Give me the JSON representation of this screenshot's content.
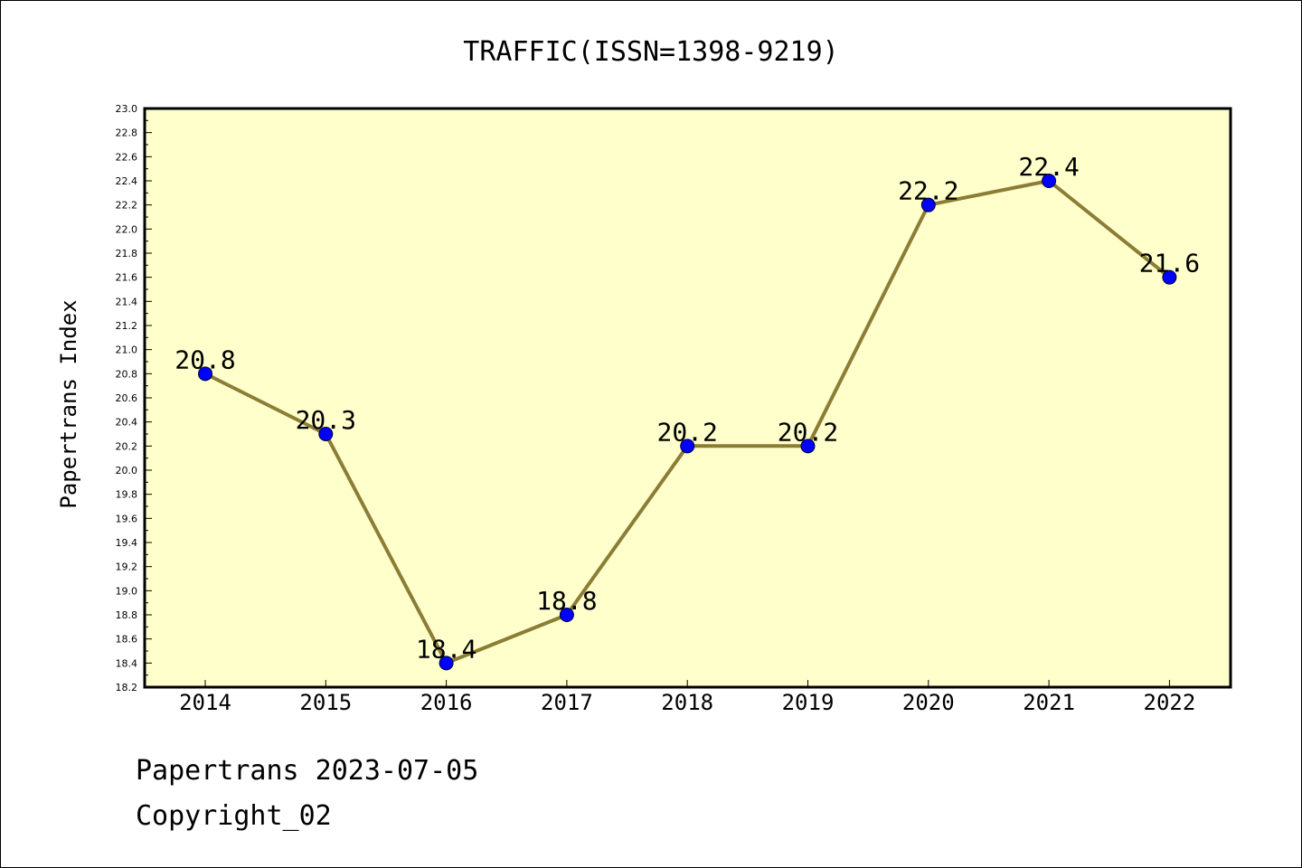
{
  "chart_data": {
    "type": "line",
    "title": "TRAFFIC(ISSN=1398-9219)",
    "xlabel": "",
    "ylabel": "Papertrans Index",
    "categories": [
      "2014",
      "2015",
      "2016",
      "2017",
      "2018",
      "2019",
      "2020",
      "2021",
      "2022"
    ],
    "values": [
      20.8,
      20.3,
      18.4,
      18.8,
      20.2,
      20.2,
      22.2,
      22.4,
      21.6
    ],
    "data_labels": [
      "20.8",
      "20.3",
      "18.4",
      "18.8",
      "20.2",
      "20.2",
      "22.2",
      "22.4",
      "21.6"
    ],
    "ylim": [
      18.2,
      23.0
    ],
    "y_ticks": [
      "18.2",
      "18.4",
      "18.6",
      "18.8",
      "19.0",
      "19.2",
      "19.4",
      "19.6",
      "19.8",
      "20.0",
      "20.2",
      "20.4",
      "20.6",
      "20.8",
      "21.0",
      "21.2",
      "21.4",
      "21.6",
      "21.8",
      "22.0",
      "22.2",
      "22.4",
      "22.6",
      "22.8",
      "23.0"
    ],
    "grid": false,
    "colors": {
      "plot_background": "#ffffcc",
      "line": "#8b7d35",
      "marker": "#0000ff"
    }
  },
  "footer": {
    "line1": "Papertrans 2023-07-05",
    "line2": "Copyright_02"
  }
}
